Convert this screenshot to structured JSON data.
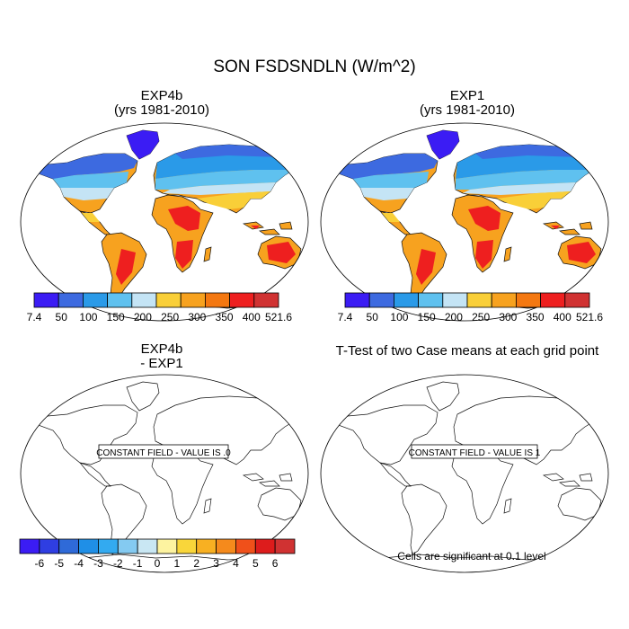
{
  "title": "SON FSDSNDLN (W/m^2)",
  "panels": [
    {
      "name": "EXP4b",
      "subtitle": "(yrs 1981-2010)",
      "filled": true
    },
    {
      "name": "EXP1",
      "subtitle": "(yrs 1981-2010)",
      "filled": true
    },
    {
      "name": "EXP4b",
      "subtitle": "- EXP1",
      "filled": false,
      "message": "CONSTANT FIELD - VALUE IS .0"
    },
    {
      "name": "T-Test of two Case means at each grid point",
      "subtitle": "",
      "filled": false,
      "message": "CONSTANT FIELD - VALUE IS 1"
    }
  ],
  "colorbars": {
    "top_left": {
      "labels": [
        "7.4",
        "50",
        "100",
        "150",
        "200",
        "250",
        "300",
        "350",
        "400",
        "521.6"
      ],
      "colors": [
        "#3b1cf4",
        "#3d6ae0",
        "#2a9ae8",
        "#5fc1ef",
        "#c4e4f5",
        "#f9cf38",
        "#f7a21f",
        "#f47811",
        "#ee1f1f",
        "#d03232"
      ]
    },
    "top_right": {
      "labels": [
        "7.4",
        "50",
        "100",
        "150",
        "200",
        "250",
        "300",
        "350",
        "400",
        "521.6"
      ],
      "colors": [
        "#3b1cf4",
        "#3d6ae0",
        "#2a9ae8",
        "#5fc1ef",
        "#c4e4f5",
        "#f9cf38",
        "#f7a21f",
        "#f47811",
        "#ee1f1f",
        "#d03232"
      ]
    },
    "bottom_left": {
      "labels": [
        "-6",
        "-5",
        "-4",
        "-3",
        "-2",
        "-1",
        "0",
        "1",
        "2",
        "3",
        "4",
        "5",
        "6"
      ],
      "colors": [
        "#3b1cf4",
        "#2f3ee2",
        "#2f6ad8",
        "#1f8fe7",
        "#33aaf0",
        "#84caf1",
        "#c9e7f3",
        "#fdf3a0",
        "#f9d63a",
        "#f8b022",
        "#f58a1c",
        "#f0501a",
        "#dd1c1c",
        "#d03232"
      ]
    }
  },
  "footnote": "Cells are significant at 0.1 level"
}
